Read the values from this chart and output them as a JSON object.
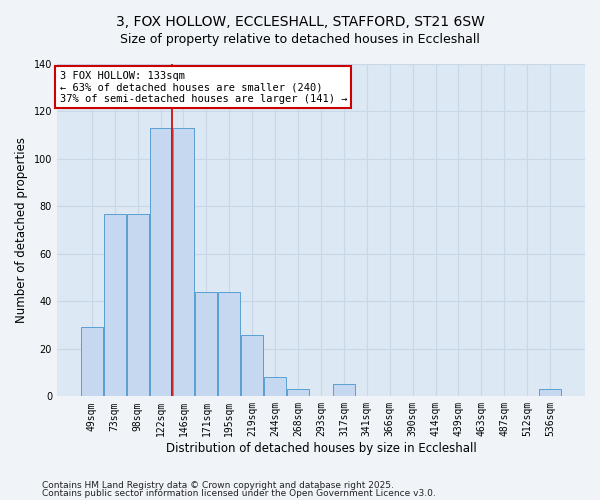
{
  "title": "3, FOX HOLLOW, ECCLESHALL, STAFFORD, ST21 6SW",
  "subtitle": "Size of property relative to detached houses in Eccleshall",
  "xlabel": "Distribution of detached houses by size in Eccleshall",
  "ylabel": "Number of detached properties",
  "categories": [
    "49sqm",
    "73sqm",
    "98sqm",
    "122sqm",
    "146sqm",
    "171sqm",
    "195sqm",
    "219sqm",
    "244sqm",
    "268sqm",
    "293sqm",
    "317sqm",
    "341sqm",
    "366sqm",
    "390sqm",
    "414sqm",
    "439sqm",
    "463sqm",
    "487sqm",
    "512sqm",
    "536sqm"
  ],
  "values": [
    29,
    77,
    77,
    113,
    113,
    44,
    44,
    26,
    8,
    3,
    0,
    5,
    0,
    0,
    0,
    0,
    0,
    0,
    0,
    0,
    3
  ],
  "bar_color": "#c5d8f0",
  "bar_edge_color": "#5a9fd4",
  "red_line_x": 3.5,
  "annotation_line1": "3 FOX HOLLOW: 133sqm",
  "annotation_line2": "← 63% of detached houses are smaller (240)",
  "annotation_line3": "37% of semi-detached houses are larger (141) →",
  "annotation_box_color": "#ffffff",
  "annotation_box_edge": "#cc0000",
  "red_line_color": "#cc0000",
  "ylim": [
    0,
    140
  ],
  "yticks": [
    0,
    20,
    40,
    60,
    80,
    100,
    120,
    140
  ],
  "grid_color": "#c8d8e8",
  "background_color": "#dce8f4",
  "footer1": "Contains HM Land Registry data © Crown copyright and database right 2025.",
  "footer2": "Contains public sector information licensed under the Open Government Licence v3.0.",
  "title_fontsize": 10,
  "subtitle_fontsize": 9,
  "axis_label_fontsize": 8.5,
  "tick_fontsize": 7,
  "annotation_fontsize": 7.5,
  "footer_fontsize": 6.5
}
